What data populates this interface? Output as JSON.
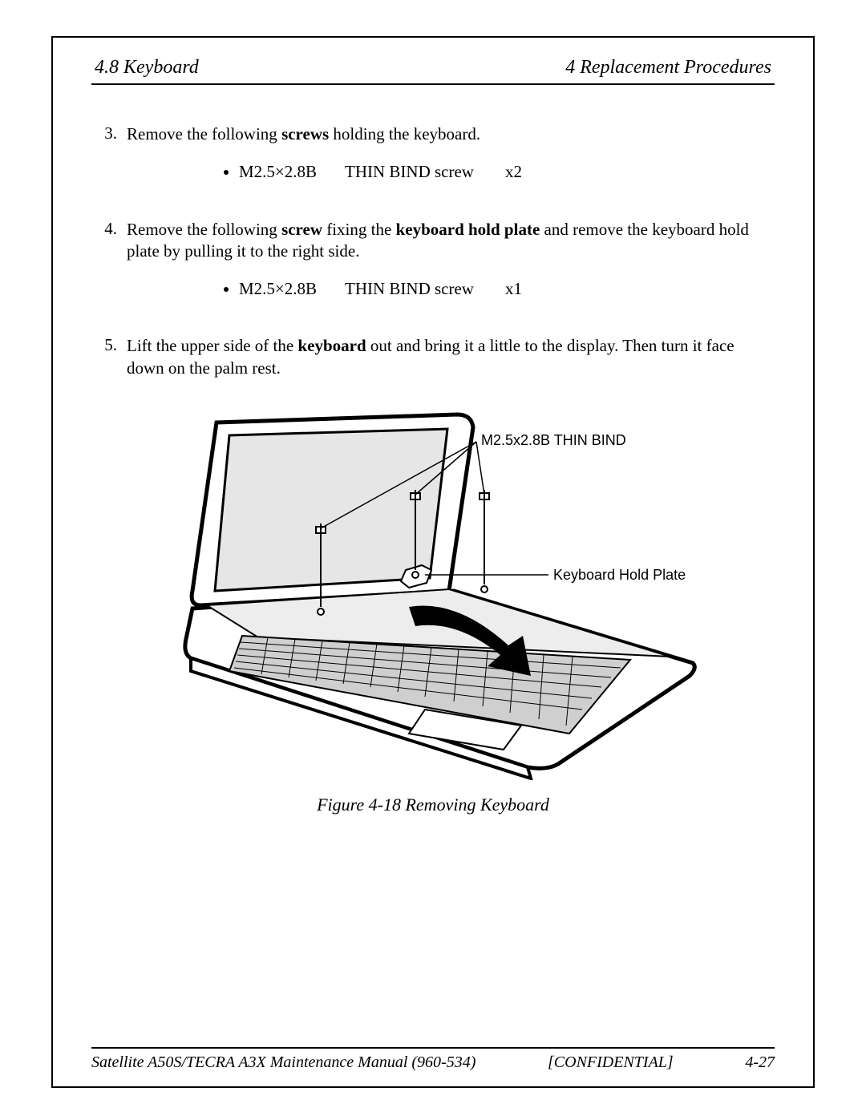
{
  "header": {
    "left": "4.8  Keyboard",
    "right": "4   Replacement Procedures"
  },
  "steps": [
    {
      "num": "3.",
      "runs": [
        {
          "t": "Remove the following "
        },
        {
          "t": "screws",
          "b": true
        },
        {
          "t": " holding the keyboard."
        }
      ],
      "screws": [
        {
          "code": "M2.5×2.8B",
          "mid": "THIN BIND screw",
          "qty": "x2"
        }
      ]
    },
    {
      "num": "4.",
      "runs": [
        {
          "t": "Remove the following "
        },
        {
          "t": "screw",
          "b": true
        },
        {
          "t": " fixing the "
        },
        {
          "t": "keyboard hold plate",
          "b": true
        },
        {
          "t": " and remove the keyboard hold plate by pulling it to the right side."
        }
      ],
      "screws": [
        {
          "code": "M2.5×2.8B",
          "mid": "THIN BIND screw",
          "qty": "x1"
        }
      ]
    },
    {
      "num": "5.",
      "runs": [
        {
          "t": "Lift the upper side of the "
        },
        {
          "t": "keyboard",
          "b": true
        },
        {
          "t": " out and bring it a little to the display. Then turn it face down on the palm rest."
        }
      ]
    }
  ],
  "figure": {
    "callout1": "M2.5x2.8B  THIN BIND",
    "callout2": "Keyboard Hold Plate",
    "caption": "Figure 4-18  Removing Keyboard",
    "colors": {
      "stroke": "#000000",
      "fill_none": "none",
      "screen_fill": "#e6e6e6",
      "kb_fill": "#cfcfcf",
      "palm_fill": "#ffffff"
    }
  },
  "footer": {
    "left": "Satellite A50S/TECRA A3X  Maintenance Manual (960-534)",
    "center": "[CONFIDENTIAL]",
    "right": "4-27"
  }
}
